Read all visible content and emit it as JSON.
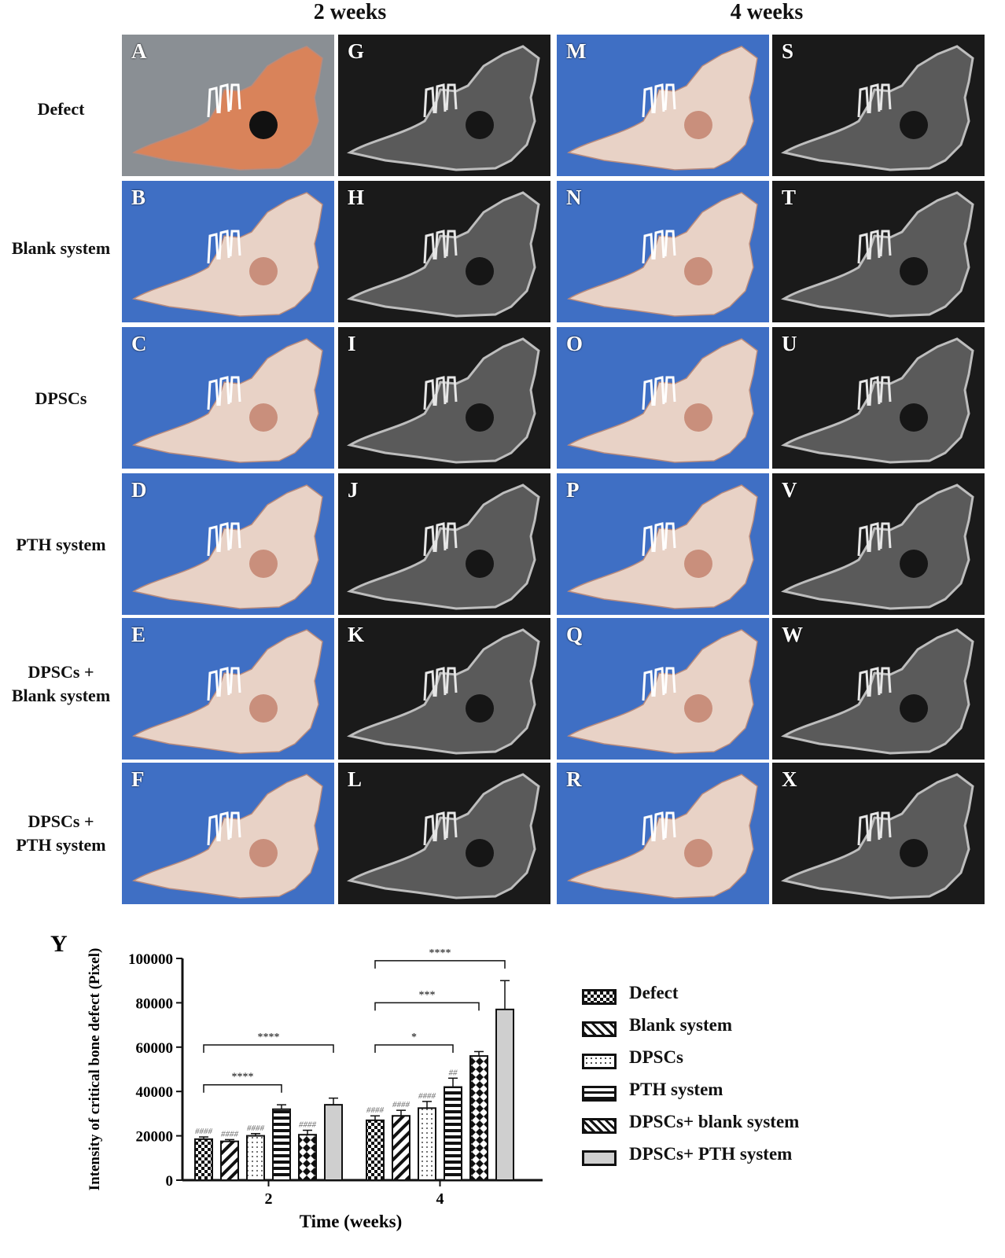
{
  "headers": {
    "week2": "2 weeks",
    "week4": "4 weeks"
  },
  "row_labels": [
    "Defect",
    "Blank system",
    "DPSCs",
    "PTH system",
    "DPSCs +\nBlank system",
    "DPSCs +\nPTH system"
  ],
  "panels": {
    "photo_2w": [
      "A",
      "B",
      "C",
      "D",
      "E",
      "F"
    ],
    "xray_2w": [
      "G",
      "H",
      "I",
      "J",
      "K",
      "L"
    ],
    "photo_4w": [
      "M",
      "N",
      "O",
      "P",
      "Q",
      "R"
    ],
    "xray_4w": [
      "S",
      "T",
      "U",
      "V",
      "W",
      "X"
    ]
  },
  "colors": {
    "blue_background": "#3f6fc4",
    "gray_background": "#8a8f94",
    "xray_background": "#1a1a1a",
    "bone": "#e8d2c6",
    "dark_defect": "#111111",
    "bar_stroke": "#111111",
    "gray_bar": "#cfcfcf"
  },
  "chart_panel_letter": "Y",
  "chart_data": {
    "type": "bar",
    "categories": [
      "2",
      "4"
    ],
    "xlabel": "Time (weeks)",
    "ylabel": "Intensity of critical bone defect (Pixel)",
    "ylim": [
      0,
      100000
    ],
    "yticks": [
      "0",
      "20000",
      "40000",
      "60000",
      "80000",
      "100000"
    ],
    "series": [
      {
        "name": "Defect",
        "pattern": "checker",
        "values": [
          18500,
          27000
        ],
        "errors": [
          1000,
          2000
        ],
        "marks": [
          "####",
          "####"
        ]
      },
      {
        "name": "Blank system",
        "pattern": "diagonal",
        "values": [
          17500,
          29000
        ],
        "errors": [
          800,
          2500
        ],
        "marks": [
          "####",
          "####"
        ]
      },
      {
        "name": "DPSCs",
        "pattern": "dots",
        "values": [
          20000,
          32500
        ],
        "errors": [
          1000,
          3000
        ],
        "marks": [
          "####",
          "####"
        ]
      },
      {
        "name": "PTH system",
        "pattern": "horizontal",
        "values": [
          32000,
          42000
        ],
        "errors": [
          2000,
          4000
        ],
        "marks": [
          "",
          "##"
        ]
      },
      {
        "name": "DPSCs+ blank system",
        "pattern": "crosshatch",
        "values": [
          20500,
          56000
        ],
        "errors": [
          2000,
          2000
        ],
        "marks": [
          "####",
          ""
        ]
      },
      {
        "name": "DPSCs+ PTH system",
        "pattern": "solid-gray",
        "values": [
          34000,
          77000
        ],
        "errors": [
          3000,
          13000
        ],
        "marks": [
          "",
          ""
        ]
      }
    ],
    "significance": [
      {
        "group": 0,
        "from": 0,
        "to": 3,
        "label": "****",
        "y": 43000
      },
      {
        "group": 0,
        "from": 0,
        "to": 5,
        "label": "****",
        "y": 61000
      },
      {
        "group": 1,
        "from": 0,
        "to": 3,
        "label": "*",
        "y": 61000
      },
      {
        "group": 1,
        "from": 0,
        "to": 4,
        "label": "***",
        "y": 80000
      },
      {
        "group": 1,
        "from": 0,
        "to": 5,
        "label": "****",
        "y": 99000
      }
    ],
    "legend": [
      "Defect",
      "Blank system",
      "DPSCs",
      "PTH system",
      "DPSCs+ blank system",
      "DPSCs+ PTH system"
    ],
    "legend_position": "right"
  }
}
